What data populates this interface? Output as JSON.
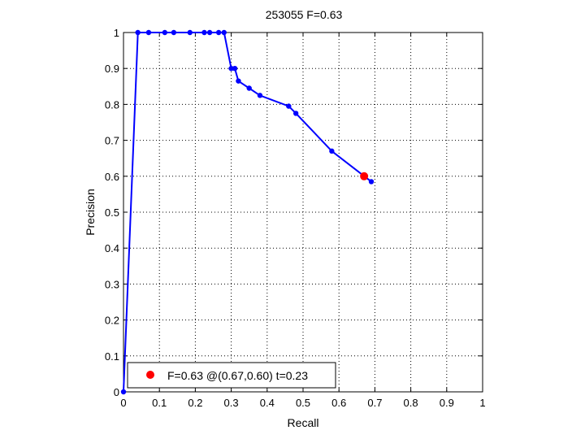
{
  "chart_data": {
    "type": "line",
    "title": "253055 F=0.63",
    "xlabel": "Recall",
    "ylabel": "Precision",
    "xlim": [
      0,
      1
    ],
    "ylim": [
      0,
      1
    ],
    "x_ticks": [
      "0",
      "0.1",
      "0.2",
      "0.3",
      "0.4",
      "0.5",
      "0.6",
      "0.7",
      "0.8",
      "0.9",
      "1"
    ],
    "y_ticks": [
      "0",
      "0.1",
      "0.2",
      "0.3",
      "0.4",
      "0.5",
      "0.6",
      "0.7",
      "0.8",
      "0.9",
      "1"
    ],
    "grid": true,
    "grid_style": "dotted",
    "line_color": "#0000ff",
    "series": [
      {
        "x": [
          0.0,
          0.04,
          0.07,
          0.115,
          0.14,
          0.185,
          0.225,
          0.24,
          0.265,
          0.28,
          0.3,
          0.31,
          0.32,
          0.35,
          0.38,
          0.46,
          0.48,
          0.58,
          0.69
        ],
        "y": [
          0.0,
          1.0,
          1.0,
          1.0,
          1.0,
          1.0,
          1.0,
          1.0,
          1.0,
          1.0,
          0.9,
          0.9,
          0.865,
          0.845,
          0.825,
          0.795,
          0.775,
          0.67,
          0.585
        ]
      }
    ],
    "best_point": {
      "x": 0.67,
      "y": 0.6,
      "color": "#ff0000"
    },
    "legend": {
      "placement": "bottom-left",
      "text": "F=0.63 @(0.67,0.60) t=0.23"
    }
  }
}
